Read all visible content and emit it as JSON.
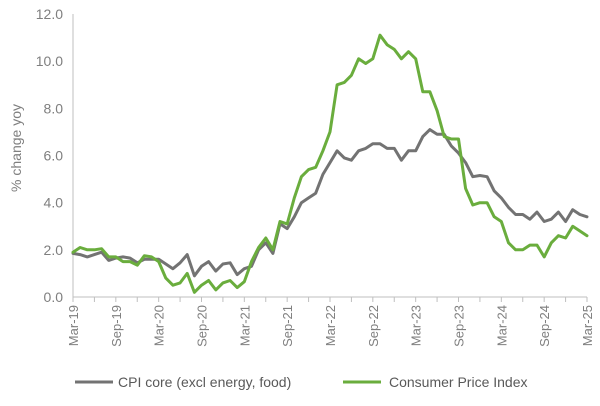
{
  "chart_data": {
    "type": "line",
    "title": "",
    "xlabel": "",
    "ylabel": "% change yoy",
    "ylim": [
      0,
      12
    ],
    "yticks": [
      "0.0",
      "2.0",
      "4.0",
      "6.0",
      "8.0",
      "10.0",
      "12.0"
    ],
    "xticks": [
      "Mar-19",
      "Sep-19",
      "Mar-20",
      "Sep-20",
      "Mar-21",
      "Sep-21",
      "Mar-22",
      "Sep-22",
      "Mar-23",
      "Sep-23",
      "Mar-24",
      "Sep-24",
      "Mar-25"
    ],
    "grid": false,
    "legend": "bottom",
    "x": [
      "Mar-19",
      "Apr-19",
      "May-19",
      "Jun-19",
      "Jul-19",
      "Aug-19",
      "Sep-19",
      "Oct-19",
      "Nov-19",
      "Dec-19",
      "Jan-20",
      "Feb-20",
      "Mar-20",
      "Apr-20",
      "May-20",
      "Jun-20",
      "Jul-20",
      "Aug-20",
      "Sep-20",
      "Oct-20",
      "Nov-20",
      "Dec-20",
      "Jan-21",
      "Feb-21",
      "Mar-21",
      "Apr-21",
      "May-21",
      "Jun-21",
      "Jul-21",
      "Aug-21",
      "Sep-21",
      "Oct-21",
      "Nov-21",
      "Dec-21",
      "Jan-22",
      "Feb-22",
      "Mar-22",
      "Apr-22",
      "May-22",
      "Jun-22",
      "Jul-22",
      "Aug-22",
      "Sep-22",
      "Oct-22",
      "Nov-22",
      "Dec-22",
      "Jan-23",
      "Feb-23",
      "Mar-23",
      "Apr-23",
      "May-23",
      "Jun-23",
      "Jul-23",
      "Aug-23",
      "Sep-23",
      "Oct-23",
      "Nov-23",
      "Dec-23",
      "Jan-24",
      "Feb-24",
      "Mar-24",
      "Apr-24",
      "May-24",
      "Jun-24",
      "Jul-24",
      "Aug-24",
      "Sep-24",
      "Oct-24",
      "Nov-24",
      "Dec-24",
      "Jan-25",
      "Feb-25",
      "Mar-25"
    ],
    "series": [
      {
        "name": "CPI core (excl energy, food)",
        "color": "#737373",
        "values": [
          1.85,
          1.8,
          1.7,
          1.8,
          1.9,
          1.55,
          1.65,
          1.7,
          1.65,
          1.45,
          1.6,
          1.6,
          1.6,
          1.4,
          1.2,
          1.45,
          1.8,
          0.9,
          1.3,
          1.5,
          1.1,
          1.4,
          1.45,
          0.95,
          1.2,
          1.3,
          2.0,
          2.3,
          1.85,
          3.1,
          2.9,
          3.4,
          4.0,
          4.2,
          4.4,
          5.2,
          5.7,
          6.2,
          5.9,
          5.8,
          6.2,
          6.3,
          6.5,
          6.5,
          6.3,
          6.3,
          5.8,
          6.2,
          6.2,
          6.8,
          7.1,
          6.9,
          6.9,
          6.4,
          6.1,
          5.7,
          5.1,
          5.15,
          5.1,
          4.5,
          4.2,
          3.8,
          3.5,
          3.5,
          3.3,
          3.6,
          3.2,
          3.3,
          3.6,
          3.2,
          3.7,
          3.5,
          3.4
        ]
      },
      {
        "name": "Consumer Price Index",
        "color": "#6aad3d",
        "values": [
          1.9,
          2.1,
          2.0,
          2.0,
          2.05,
          1.7,
          1.7,
          1.5,
          1.5,
          1.35,
          1.75,
          1.7,
          1.5,
          0.8,
          0.5,
          0.6,
          1.0,
          0.2,
          0.5,
          0.7,
          0.3,
          0.6,
          0.7,
          0.4,
          0.65,
          1.5,
          2.1,
          2.5,
          2.0,
          3.2,
          3.1,
          4.2,
          5.1,
          5.4,
          5.5,
          6.2,
          7.0,
          9.0,
          9.1,
          9.4,
          10.1,
          9.9,
          10.1,
          11.1,
          10.7,
          10.5,
          10.1,
          10.4,
          10.1,
          8.7,
          8.7,
          7.9,
          6.8,
          6.7,
          6.7,
          4.6,
          3.9,
          4.0,
          4.0,
          3.4,
          3.2,
          2.3,
          2.0,
          2.0,
          2.2,
          2.2,
          1.7,
          2.3,
          2.6,
          2.5,
          3.0,
          2.8,
          2.6
        ]
      }
    ]
  }
}
